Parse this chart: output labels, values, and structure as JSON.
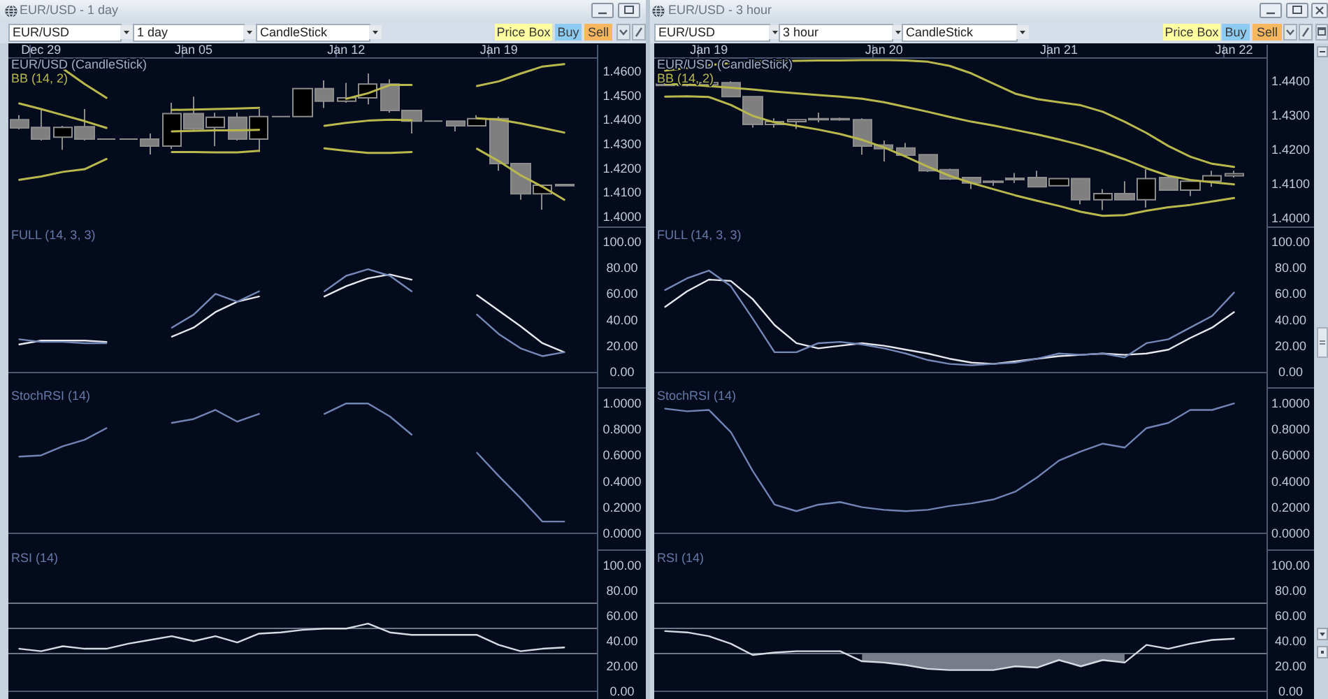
{
  "chart_data": [
    {
      "type": "candlestick",
      "title": "EUR/USD - 1 day",
      "subtitle": "EUR/USD (CandleStick)",
      "annotations": [
        "EUR/USD",
        "1 day",
        "CandleStick",
        "Price Box",
        "Buy",
        "Sell"
      ],
      "categories": [
        null,
        "Dec 29",
        null,
        null,
        null,
        null,
        null,
        null,
        "Jan 05",
        null,
        null,
        null,
        null,
        null,
        null,
        "Jan 12",
        null,
        null,
        null,
        null,
        null,
        null,
        "Jan 19",
        null,
        null,
        null,
        null
      ],
      "ohlc": [
        [
          1.44,
          1.4419,
          1.436,
          1.4366
        ],
        [
          1.4368,
          1.4444,
          1.4314,
          1.432
        ],
        [
          1.4328,
          1.4375,
          1.4276,
          1.4368
        ],
        [
          1.4371,
          1.4444,
          1.4314,
          1.432
        ],
        [
          1.432,
          1.432,
          1.432,
          1.432
        ],
        [
          1.432,
          1.432,
          1.432,
          1.432
        ],
        [
          1.432,
          1.4343,
          1.4257,
          1.4291
        ],
        [
          1.4291,
          1.447,
          1.428,
          1.4425
        ],
        [
          1.4425,
          1.4495,
          1.4352,
          1.4362
        ],
        [
          1.4368,
          1.4429,
          1.4291,
          1.441
        ],
        [
          1.441,
          1.4429,
          1.4314,
          1.432
        ],
        [
          1.432,
          1.4444,
          1.4267,
          1.4413
        ],
        [
          1.4413,
          1.4413,
          1.4413,
          1.4413
        ],
        [
          1.4413,
          1.4528,
          1.4413,
          1.4528
        ],
        [
          1.4528,
          1.4562,
          1.4448,
          1.4476
        ],
        [
          1.4476,
          1.4552,
          1.447,
          1.449
        ],
        [
          1.449,
          1.459,
          1.4463,
          1.4547
        ],
        [
          1.4547,
          1.4566,
          1.4429,
          1.4438
        ],
        [
          1.4438,
          1.4438,
          1.4343,
          1.4394
        ],
        [
          1.4394,
          1.4394,
          1.4394,
          1.4394
        ],
        [
          1.4394,
          1.4394,
          1.4352,
          1.4375
        ],
        [
          1.4375,
          1.4419,
          1.4375,
          1.4404
        ],
        [
          1.4404,
          1.4413,
          1.419,
          1.4219
        ],
        [
          1.4219,
          1.4219,
          1.407,
          1.4095
        ],
        [
          1.4095,
          1.413,
          1.4029,
          1.413
        ],
        [
          1.4128,
          1.4135,
          1.4125,
          1.4133
        ],
        null
      ],
      "colors": [
        "#7f7f7f",
        "#7f7f7f",
        "#000000",
        "#7f7f7f",
        "#7f7f7f",
        "#7f7f7f",
        "#7f7f7f",
        "#000000",
        "#7f7f7f",
        "#000000",
        "#7f7f7f",
        "#000000",
        "#7f7f7f",
        "#000000",
        "#7f7f7f",
        "#000000",
        "#000000",
        "#7f7f7f",
        "#7f7f7f",
        "#7f7f7f",
        "#7f7f7f",
        "#000000",
        "#7f7f7f",
        "#7f7f7f",
        "#000000",
        "#7f7f7f",
        null
      ],
      "series": [
        {
          "type": "line",
          "name": "BB (14, 2)",
          "color": "#b9b84c",
          "values": [
            null,
            null,
            1.461,
            1.4547,
            1.449,
            null,
            null,
            1.444,
            1.4442,
            1.4444,
            1.4446,
            1.4449,
            null,
            null,
            null,
            1.4486,
            1.4509,
            1.4543,
            1.4543,
            null,
            null,
            1.4539,
            1.4558,
            1.459,
            1.4619,
            1.4629,
            null
          ]
        },
        {
          "type": "line",
          "color": "#b9b84c",
          "values": [
            1.4467,
            1.4444,
            1.4419,
            1.4394,
            1.4366,
            null,
            null,
            1.4352,
            1.4354,
            1.4356,
            1.4356,
            1.4358,
            null,
            null,
            1.4375,
            1.4387,
            1.4396,
            1.44,
            1.4398,
            null,
            null,
            1.4406,
            1.44,
            1.4385,
            1.4366,
            1.4347,
            null
          ]
        },
        {
          "type": "line",
          "color": "#b9b84c",
          "values": [
            1.4152,
            1.4166,
            1.4185,
            1.4196,
            1.4238,
            null,
            null,
            1.4267,
            1.4267,
            1.4265,
            1.4265,
            1.4272,
            null,
            null,
            1.4282,
            1.4272,
            1.4263,
            1.4263,
            1.4267,
            null,
            null,
            1.428,
            1.4229,
            1.4171,
            1.4124,
            1.407,
            null
          ]
        }
      ],
      "ylim": [
        1.396,
        1.4657
      ],
      "yticks": [
        {
          "value": 1.4,
          "label": "1.4000"
        },
        {
          "value": 1.41,
          "label": "1.4100"
        },
        {
          "value": 1.42,
          "label": "1.4200"
        },
        {
          "value": 1.43,
          "label": "1.4300"
        },
        {
          "value": 1.44,
          "label": "1.4400"
        },
        {
          "value": 1.45,
          "label": "1.4500"
        },
        {
          "value": 1.46,
          "label": "1.4600"
        }
      ]
    },
    {
      "type": "line",
      "title": "FULL (14, 3, 3)",
      "tick_labels": "y",
      "categories": [
        null,
        null,
        null,
        null,
        null,
        null,
        null,
        null,
        null,
        null,
        null,
        null,
        null,
        null,
        null,
        null,
        null,
        null,
        null,
        null,
        null,
        null,
        null,
        null,
        null,
        null,
        null
      ],
      "series": [
        {
          "color": "#e6e8ee",
          "values": [
            21,
            24,
            24,
            24,
            23,
            null,
            null,
            27,
            34,
            46,
            54,
            58,
            null,
            null,
            58,
            66,
            72,
            75,
            71,
            null,
            null,
            59,
            47,
            35,
            22,
            15,
            null
          ]
        },
        {
          "color": "#7489b8",
          "values": [
            25,
            23,
            23,
            22,
            22,
            null,
            null,
            34,
            44,
            60,
            54,
            62,
            null,
            null,
            62,
            74,
            79,
            74,
            62,
            null,
            null,
            44,
            29,
            18,
            12,
            15,
            null
          ]
        }
      ],
      "ylim": [
        -12,
        112
      ],
      "yticks": [
        {
          "value": 0,
          "label": "0.00"
        },
        {
          "value": 20,
          "label": "20.00"
        },
        {
          "value": 40,
          "label": "40.00"
        },
        {
          "value": 60,
          "label": "60.00"
        },
        {
          "value": 80,
          "label": "80.00"
        },
        {
          "value": 100,
          "label": "100.00"
        }
      ]
    },
    {
      "type": "line",
      "title": "StochRSI (14)",
      "tick_labels": "y",
      "categories": [
        null,
        null,
        null,
        null,
        null,
        null,
        null,
        null,
        null,
        null,
        null,
        null,
        null,
        null,
        null,
        null,
        null,
        null,
        null,
        null,
        null,
        null,
        null,
        null,
        null,
        null,
        null
      ],
      "series": [
        {
          "color": "#7085b5",
          "values": [
            0.59,
            0.6,
            0.67,
            0.72,
            0.81,
            null,
            null,
            0.85,
            0.88,
            0.95,
            0.86,
            0.92,
            null,
            null,
            0.92,
            1,
            1,
            0.9,
            0.76,
            null,
            null,
            0.62,
            0.44,
            0.27,
            0.09,
            0.09,
            null
          ]
        }
      ],
      "ylim": [
        -0.125,
        1.125
      ],
      "yticks": [
        {
          "value": 0,
          "label": "0.0000"
        },
        {
          "value": 0.2,
          "label": "0.2000"
        },
        {
          "value": 0.4,
          "label": "0.4000"
        },
        {
          "value": 0.6,
          "label": "0.6000"
        },
        {
          "value": 0.8,
          "label": "0.8000"
        },
        {
          "value": 1,
          "label": "1.0000"
        }
      ]
    },
    {
      "type": "line",
      "title": "RSI (14)",
      "tick_labels": "y",
      "categories": [
        null,
        null,
        null,
        null,
        null,
        null,
        null,
        null,
        null,
        null,
        null,
        null,
        null,
        null,
        null,
        null,
        null,
        null,
        null,
        null,
        null,
        null,
        null,
        null,
        null,
        null,
        null
      ],
      "series": [
        {
          "color": "#d6dae2",
          "values": [
            34,
            32,
            36,
            34,
            34,
            38,
            41,
            44,
            40,
            44,
            39,
            46,
            47,
            49,
            50,
            50,
            54,
            47,
            45,
            45,
            45,
            45,
            37,
            32,
            34,
            35,
            null
          ]
        }
      ],
      "ref_lines": [
        {
          "axis": "y",
          "value": 70,
          "color": "#6c7686"
        },
        {
          "axis": "y",
          "value": 50,
          "color": "#6c7686"
        },
        {
          "axis": "y",
          "value": 30,
          "color": "#6c7686"
        }
      ],
      "ylim": [
        -6,
        113
      ],
      "yticks": [
        {
          "value": 0,
          "label": "0.00"
        },
        {
          "value": 20,
          "label": "20.00"
        },
        {
          "value": 40,
          "label": "40.00"
        },
        {
          "value": 60,
          "label": "60.00"
        },
        {
          "value": 80,
          "label": "80.00"
        },
        {
          "value": 100,
          "label": "100.00"
        }
      ]
    },
    {
      "type": "candlestick",
      "title": "EUR/USD - 3 hour",
      "subtitle": "EUR/USD (CandleStick)",
      "annotations": [
        "EUR/USD",
        "3 hour",
        "CandleStick",
        "Price Box",
        "Buy",
        "Sell"
      ],
      "categories": [
        null,
        null,
        "Jan 19",
        null,
        null,
        null,
        null,
        null,
        null,
        null,
        "Jan 20",
        null,
        null,
        null,
        null,
        null,
        null,
        null,
        "Jan 21",
        null,
        null,
        null,
        null,
        null,
        null,
        null,
        "Jan 22",
        null
      ],
      "ohlc": [
        [
          1.4392,
          1.4395,
          1.4386,
          1.4388
        ],
        [
          1.4388,
          1.4395,
          1.4385,
          1.439
        ],
        [
          1.439,
          1.44,
          1.4388,
          1.4396
        ],
        [
          1.4396,
          1.44,
          1.4355,
          1.4355
        ],
        [
          1.4355,
          1.4355,
          1.4265,
          1.4274
        ],
        [
          1.4274,
          1.4292,
          1.4265,
          1.4282
        ],
        [
          1.4282,
          1.429,
          1.4261,
          1.4288
        ],
        [
          1.4288,
          1.4308,
          1.428,
          1.4291
        ],
        [
          1.4291,
          1.4294,
          1.4285,
          1.4288
        ],
        [
          1.4288,
          1.4292,
          1.4186,
          1.4211
        ],
        [
          1.4214,
          1.4227,
          1.4166,
          1.4203
        ],
        [
          1.4205,
          1.422,
          1.4184,
          1.4184
        ],
        [
          1.4186,
          1.4186,
          1.4135,
          1.4139
        ],
        [
          1.4142,
          1.4145,
          1.4112,
          1.4115
        ],
        [
          1.4119,
          1.4119,
          1.4085,
          1.4103
        ],
        [
          1.4108,
          1.4111,
          1.4095,
          1.4105
        ],
        [
          1.4113,
          1.4132,
          1.4103,
          1.4117
        ],
        [
          1.4119,
          1.4139,
          1.4092,
          1.4092
        ],
        [
          1.4095,
          1.4116,
          1.4095,
          1.4116
        ],
        [
          1.4116,
          1.4116,
          1.4041,
          1.4054
        ],
        [
          1.4054,
          1.4085,
          1.4024,
          1.4072
        ],
        [
          1.4072,
          1.4108,
          1.4054,
          1.4054
        ],
        [
          1.4054,
          1.4143,
          1.4031,
          1.4116
        ],
        [
          1.4119,
          1.4119,
          1.4082,
          1.4082
        ],
        [
          1.4082,
          1.4108,
          1.4065,
          1.4108
        ],
        [
          1.4108,
          1.4139,
          1.4092,
          1.4124
        ],
        [
          1.4124,
          1.4139,
          1.4119,
          1.413
        ],
        null
      ],
      "colors": [
        "#7f7f7f",
        "#000000",
        "#000000",
        "#7f7f7f",
        "#7f7f7f",
        "#000000",
        "#000000",
        "#000000",
        "#7f7f7f",
        "#7f7f7f",
        "#7f7f7f",
        "#7f7f7f",
        "#7f7f7f",
        "#7f7f7f",
        "#7f7f7f",
        "#7f7f7f",
        "#000000",
        "#7f7f7f",
        "#000000",
        "#7f7f7f",
        "#000000",
        "#7f7f7f",
        "#000000",
        "#7f7f7f",
        "#000000",
        "#000000",
        "#000000",
        null
      ],
      "series": [
        {
          "type": "line",
          "name": "BB (14, 2)",
          "color": "#b9b84c",
          "values": [
            1.4431,
            1.4439,
            1.4447,
            1.4453,
            1.4457,
            1.4459,
            1.446,
            1.4461,
            1.4461,
            1.4462,
            1.4462,
            1.4461,
            1.4457,
            1.4445,
            1.4423,
            1.4393,
            1.4364,
            1.4348,
            1.4339,
            1.433,
            1.4311,
            1.4282,
            1.4249,
            1.4211,
            1.418,
            1.4159,
            1.415,
            null
          ]
        },
        {
          "type": "line",
          "color": "#b9b84c",
          "values": [
            1.4392,
            1.4391,
            1.4386,
            1.4381,
            1.4376,
            1.437,
            1.4365,
            1.436,
            1.4355,
            1.4349,
            1.4339,
            1.4325,
            1.4311,
            1.4296,
            1.4282,
            1.4271,
            1.4258,
            1.4245,
            1.423,
            1.4214,
            1.4195,
            1.4172,
            1.4146,
            1.4124,
            1.4112,
            1.4105,
            1.4099,
            null
          ]
        },
        {
          "type": "line",
          "color": "#b9b84c",
          "values": [
            1.4355,
            1.4356,
            1.4354,
            1.4331,
            1.4299,
            1.428,
            1.427,
            1.4259,
            1.4246,
            1.4229,
            1.4207,
            1.418,
            1.4151,
            1.4124,
            1.4103,
            1.4085,
            1.4067,
            1.4051,
            1.4036,
            1.4019,
            1.4007,
            1.4009,
            1.4022,
            1.4032,
            1.4039,
            1.4049,
            1.4059,
            null
          ]
        }
      ],
      "ylim": [
        1.3976,
        1.447
      ],
      "yticks": [
        {
          "value": 1.4,
          "label": "1.4000"
        },
        {
          "value": 1.41,
          "label": "1.4100"
        },
        {
          "value": 1.42,
          "label": "1.4200"
        },
        {
          "value": 1.43,
          "label": "1.4300"
        },
        {
          "value": 1.44,
          "label": "1.4400"
        }
      ]
    },
    {
      "type": "line",
      "title": "FULL (14, 3, 3)",
      "tick_labels": "y",
      "categories": [
        null,
        null,
        null,
        null,
        null,
        null,
        null,
        null,
        null,
        null,
        null,
        null,
        null,
        null,
        null,
        null,
        null,
        null,
        null,
        null,
        null,
        null,
        null,
        null,
        null,
        null,
        null,
        null
      ],
      "series": [
        {
          "color": "#e6e8ee",
          "values": [
            50,
            62,
            71,
            70,
            56,
            36,
            22,
            18,
            20,
            22,
            20,
            17,
            14,
            10,
            7,
            6,
            8,
            10,
            12,
            13,
            14,
            13,
            14,
            17,
            26,
            34,
            46,
            null
          ]
        },
        {
          "color": "#7489b8",
          "values": [
            63,
            72,
            78,
            66,
            41,
            15,
            15,
            22,
            23,
            21,
            18,
            14,
            9,
            6,
            5,
            6,
            7,
            10,
            14,
            13,
            14,
            11,
            22,
            25,
            34,
            43,
            61,
            null
          ]
        }
      ],
      "ylim": [
        -12,
        112
      ],
      "yticks": [
        {
          "value": 0,
          "label": "0.00"
        },
        {
          "value": 20,
          "label": "20.00"
        },
        {
          "value": 40,
          "label": "40.00"
        },
        {
          "value": 60,
          "label": "60.00"
        },
        {
          "value": 80,
          "label": "80.00"
        },
        {
          "value": 100,
          "label": "100.00"
        }
      ]
    },
    {
      "type": "line",
      "title": "StochRSI (14)",
      "tick_labels": "y",
      "categories": [
        null,
        null,
        null,
        null,
        null,
        null,
        null,
        null,
        null,
        null,
        null,
        null,
        null,
        null,
        null,
        null,
        null,
        null,
        null,
        null,
        null,
        null,
        null,
        null,
        null,
        null,
        null,
        null
      ],
      "series": [
        {
          "color": "#7085b5",
          "values": [
            0.96,
            0.94,
            0.95,
            0.78,
            0.48,
            0.22,
            0.17,
            0.22,
            0.24,
            0.2,
            0.18,
            0.17,
            0.18,
            0.21,
            0.23,
            0.26,
            0.32,
            0.43,
            0.56,
            0.63,
            0.69,
            0.66,
            0.81,
            0.85,
            0.95,
            0.95,
            1,
            null
          ]
        }
      ],
      "ylim": [
        -0.125,
        1.125
      ],
      "yticks": [
        {
          "value": 0,
          "label": "0.0000"
        },
        {
          "value": 0.2,
          "label": "0.2000"
        },
        {
          "value": 0.4,
          "label": "0.4000"
        },
        {
          "value": 0.6,
          "label": "0.6000"
        },
        {
          "value": 0.8,
          "label": "0.8000"
        },
        {
          "value": 1,
          "label": "1.0000"
        }
      ]
    },
    {
      "type": "line",
      "title": "RSI (14)",
      "tick_labels": "y",
      "categories": [
        null,
        null,
        null,
        null,
        null,
        null,
        null,
        null,
        null,
        null,
        null,
        null,
        null,
        null,
        null,
        null,
        null,
        null,
        null,
        null,
        null,
        null,
        null,
        null,
        null,
        null,
        null,
        null
      ],
      "series": [
        {
          "color": "#d6dae2",
          "values": [
            48,
            47,
            44,
            38,
            29,
            31,
            32,
            32,
            32,
            24,
            23,
            21,
            18,
            17,
            17,
            17,
            20,
            19,
            25,
            20,
            25,
            23,
            37,
            34,
            38,
            41,
            42,
            null
          ],
          "lower": [
            null,
            null,
            null,
            null,
            null,
            null,
            null,
            null,
            null,
            24,
            23,
            21,
            18,
            17,
            17,
            17,
            20,
            19,
            25,
            20,
            25,
            23,
            null,
            null,
            null,
            null,
            null,
            null
          ],
          "upper": [
            null,
            null,
            null,
            null,
            null,
            null,
            null,
            null,
            null,
            30,
            30,
            30,
            30,
            30,
            30,
            30,
            30,
            30,
            30,
            30,
            30,
            30,
            null,
            null,
            null,
            null,
            null,
            null
          ]
        }
      ],
      "ref_lines": [
        {
          "axis": "y",
          "value": 70,
          "color": "#6c7686"
        },
        {
          "axis": "y",
          "value": 50,
          "color": "#6c7686"
        },
        {
          "axis": "y",
          "value": 30,
          "color": "#6c7686"
        }
      ],
      "ylim": [
        -6,
        113
      ],
      "yticks": [
        {
          "value": 0,
          "label": "0.00"
        },
        {
          "value": 20,
          "label": "20.00"
        },
        {
          "value": 40,
          "label": "40.00"
        },
        {
          "value": 60,
          "label": "60.00"
        },
        {
          "value": 80,
          "label": "80.00"
        },
        {
          "value": 100,
          "label": "100.00"
        }
      ]
    }
  ]
}
